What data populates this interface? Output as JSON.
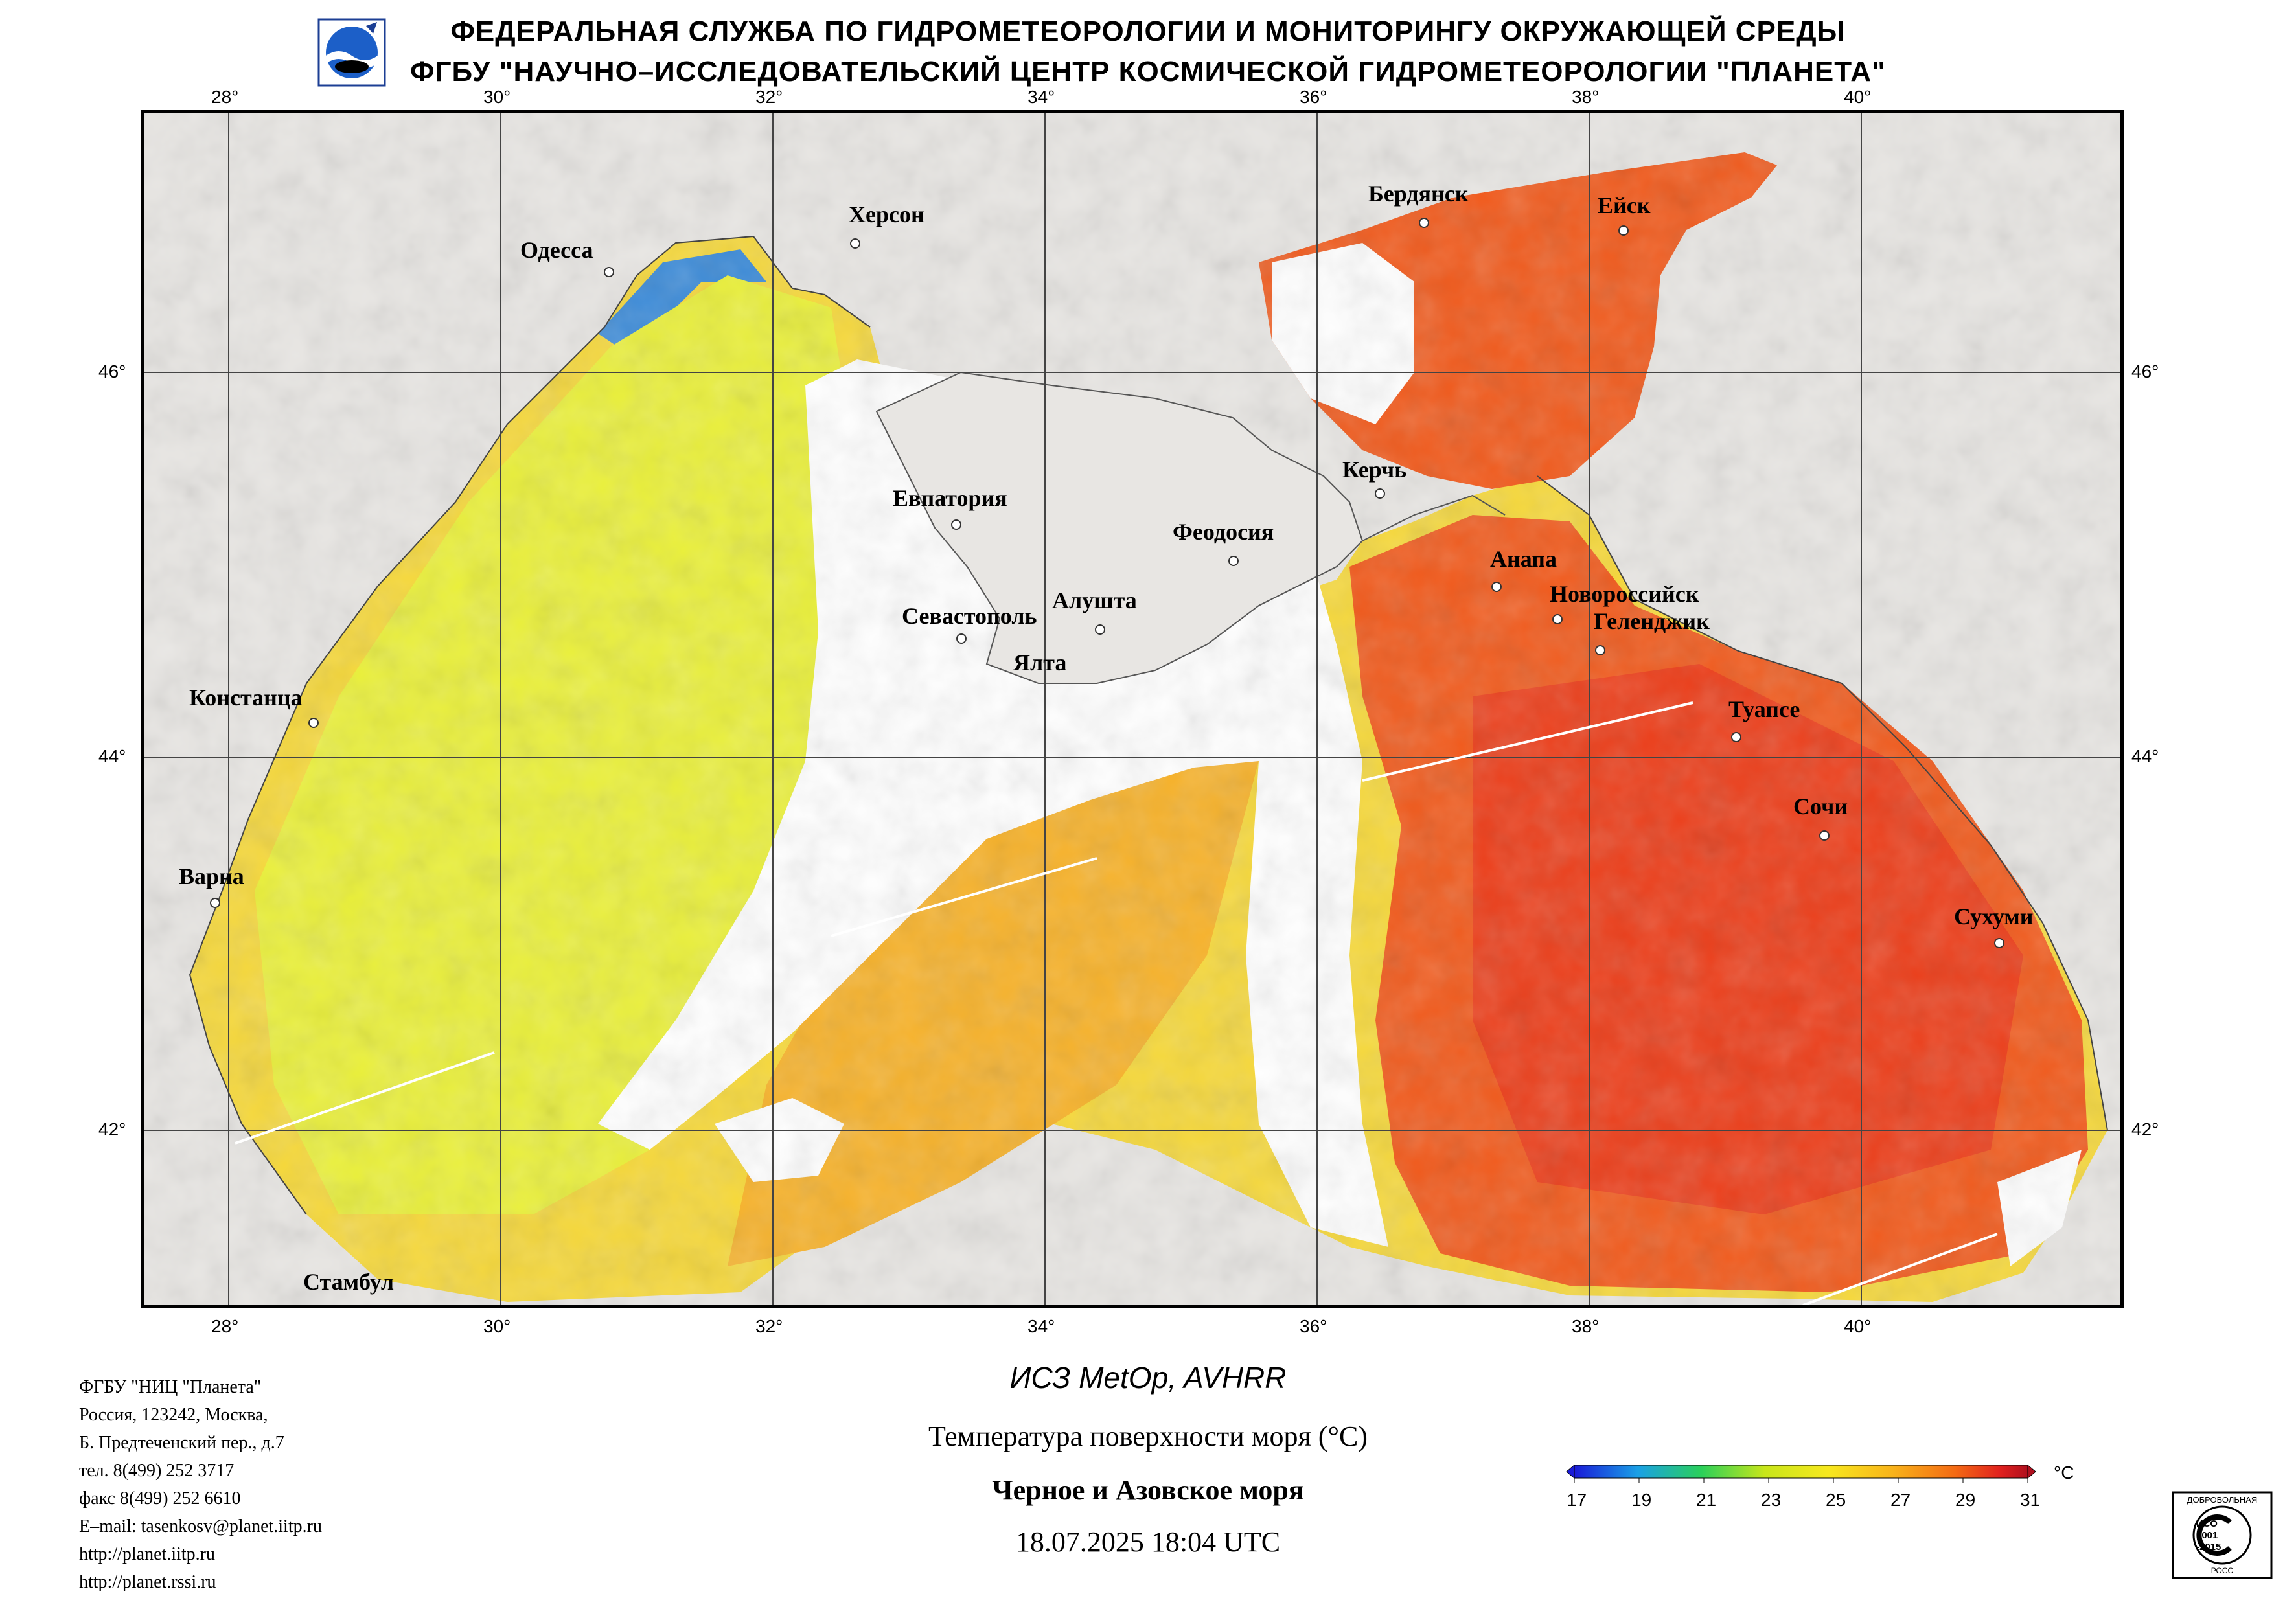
{
  "header": {
    "line1": "ФЕДЕРАЛЬНАЯ СЛУЖБА ПО ГИДРОМЕТЕОРОЛОГИИ И МОНИТОРИНГУ ОКРУЖАЮЩЕЙ СРЕДЫ",
    "line2": "ФГБУ \"НАУЧНО–ИССЛЕДОВАТЕЛЬСКИЙ ЦЕНТР КОСМИЧЕСКОЙ ГИДРОМЕТЕОРОЛОГИИ \"ПЛАНЕТА\""
  },
  "map": {
    "lon_ticks": [
      "28°",
      "30°",
      "32°",
      "34°",
      "36°",
      "38°",
      "40°"
    ],
    "lat_ticks": [
      "46°",
      "44°",
      "42°"
    ],
    "cities": [
      {
        "name": "Одесса"
      },
      {
        "name": "Херсон"
      },
      {
        "name": "Бердянск"
      },
      {
        "name": "Ейск"
      },
      {
        "name": "Евпатория"
      },
      {
        "name": "Керчь"
      },
      {
        "name": "Феодосия"
      },
      {
        "name": "Анапа"
      },
      {
        "name": "Новороссийск"
      },
      {
        "name": "Геленджик"
      },
      {
        "name": "Севастополь"
      },
      {
        "name": "Алушта"
      },
      {
        "name": "Ялта"
      },
      {
        "name": "Констанца"
      },
      {
        "name": "Туапсе"
      },
      {
        "name": "Сочи"
      },
      {
        "name": "Варна"
      },
      {
        "name": "Сухуми"
      },
      {
        "name": "Стамбул"
      }
    ],
    "colors": {
      "land": "#e8e6e3",
      "cloud": "#ffffff",
      "border": "#555555"
    }
  },
  "footer": {
    "satellite": "ИСЗ MetOp, AVHRR",
    "product": "Температура поверхности моря (°C)",
    "region": "Черное и Азовское моря",
    "datetime": "18.07.2025 18:04 UTC",
    "contacts": [
      "ФГБУ \"НИЦ \"Планета\"",
      "Россия, 123242, Москва,",
      "Б. Предтеченский пер., д.7",
      "тел. 8(499) 252 3717",
      "факс 8(499) 252 6610",
      "E–mail: tasenkosv@planet.iitp.ru",
      "http://planet.iitp.ru",
      "http://planet.rssi.ru"
    ]
  },
  "colorbar": {
    "unit": "°C",
    "ticks": [
      "17",
      "19",
      "21",
      "23",
      "25",
      "27",
      "29",
      "31"
    ],
    "colors": [
      "#1a1ad8",
      "#1aa0e6",
      "#2ad05a",
      "#c8e61a",
      "#f7e81e",
      "#f8b41a",
      "#f46a14",
      "#e0201e",
      "#b0101e"
    ]
  },
  "certificate": {
    "top": "ДОБРОВОЛЬНАЯ",
    "mid1": "ИСО",
    "mid2": "9001",
    "mid3": "-2015",
    "bottom": "РОСС"
  }
}
